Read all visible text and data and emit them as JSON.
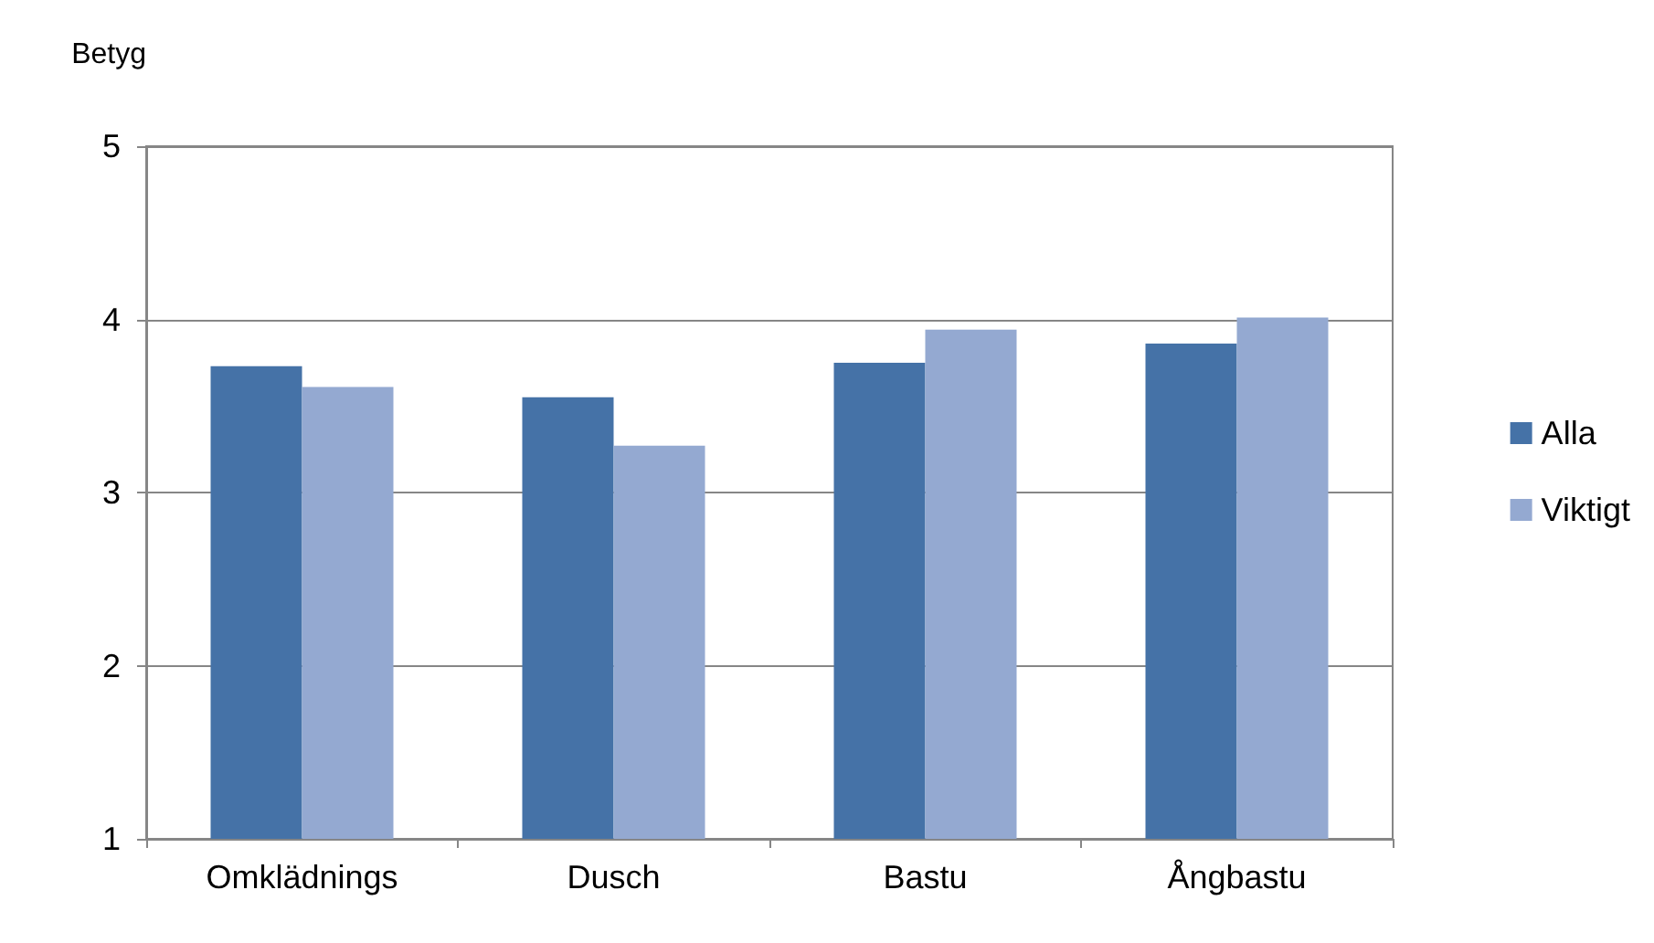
{
  "chart_data": {
    "type": "bar",
    "ylabel": "Betyg",
    "categories": [
      "Omklädnings",
      "Dusch",
      "Bastu",
      "Ångbastu"
    ],
    "series": [
      {
        "name": "Alla",
        "color": "#4572a7",
        "values": [
          3.73,
          3.55,
          3.75,
          3.86
        ]
      },
      {
        "name": "Viktigt",
        "color": "#94a9d1",
        "values": [
          3.61,
          3.27,
          3.94,
          4.01
        ]
      }
    ],
    "ylim": [
      1,
      5
    ],
    "yticks": [
      1,
      2,
      3,
      4,
      5
    ],
    "grid": "y",
    "legend": "right"
  }
}
